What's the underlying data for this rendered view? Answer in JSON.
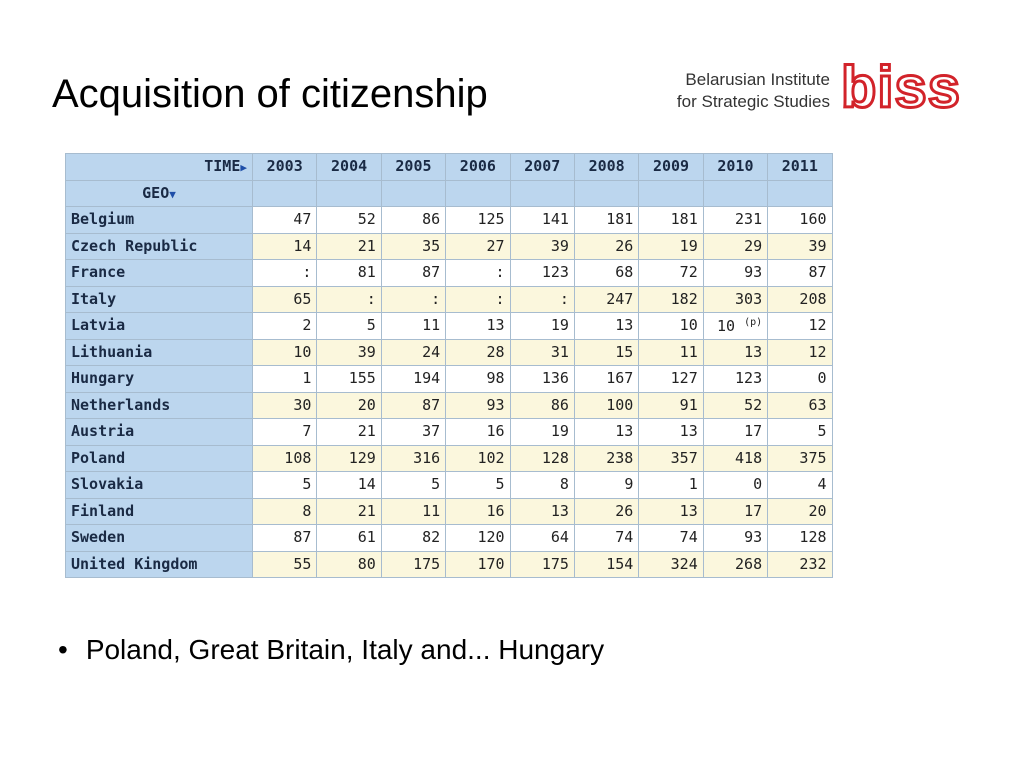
{
  "slide": {
    "title": "Acquisition of citizenship",
    "bullets": [
      "Poland, Great Britain, Italy and... Hungary"
    ]
  },
  "logo": {
    "line1": "Belarusian Institute",
    "line2": "for Strategic Studies",
    "mark": "biss",
    "color": "#d2232a"
  },
  "table": {
    "time_label": "TIME",
    "geo_label": "GEO",
    "years": [
      "2003",
      "2004",
      "2005",
      "2006",
      "2007",
      "2008",
      "2009",
      "2010",
      "2011"
    ],
    "rows": [
      {
        "geo": "Belgium",
        "values": [
          "47",
          "52",
          "86",
          "125",
          "141",
          "181",
          "181",
          "231",
          "160"
        ]
      },
      {
        "geo": "Czech Republic",
        "values": [
          "14",
          "21",
          "35",
          "27",
          "39",
          "26",
          "19",
          "29",
          "39"
        ]
      },
      {
        "geo": "France",
        "values": [
          ":",
          "81",
          "87",
          ":",
          "123",
          "68",
          "72",
          "93",
          "87"
        ]
      },
      {
        "geo": "Italy",
        "values": [
          "65",
          ":",
          ":",
          ":",
          ":",
          "247",
          "182",
          "303",
          "208"
        ]
      },
      {
        "geo": "Latvia",
        "values": [
          "2",
          "5",
          "11",
          "13",
          "19",
          "13",
          "10",
          "10",
          "12"
        ]
      },
      {
        "geo": "Lithuania",
        "values": [
          "10",
          "39",
          "24",
          "28",
          "31",
          "15",
          "11",
          "13",
          "12"
        ]
      },
      {
        "geo": "Hungary",
        "values": [
          "1",
          "155",
          "194",
          "98",
          "136",
          "167",
          "127",
          "123",
          "0"
        ]
      },
      {
        "geo": "Netherlands",
        "values": [
          "30",
          "20",
          "87",
          "93",
          "86",
          "100",
          "91",
          "52",
          "63"
        ]
      },
      {
        "geo": "Austria",
        "values": [
          "7",
          "21",
          "37",
          "16",
          "19",
          "13",
          "13",
          "17",
          "5"
        ]
      },
      {
        "geo": "Poland",
        "values": [
          "108",
          "129",
          "316",
          "102",
          "128",
          "238",
          "357",
          "418",
          "375"
        ]
      },
      {
        "geo": "Slovakia",
        "values": [
          "5",
          "14",
          "5",
          "5",
          "8",
          "9",
          "1",
          "0",
          "4"
        ]
      },
      {
        "geo": "Finland",
        "values": [
          "8",
          "21",
          "11",
          "16",
          "13",
          "26",
          "13",
          "17",
          "20"
        ]
      },
      {
        "geo": "Sweden",
        "values": [
          "87",
          "61",
          "82",
          "120",
          "64",
          "74",
          "74",
          "93",
          "128"
        ]
      },
      {
        "geo": "United Kingdom",
        "values": [
          "55",
          "80",
          "175",
          "170",
          "175",
          "154",
          "324",
          "268",
          "232"
        ]
      }
    ],
    "flags": {
      "Latvia-2010": "(p)"
    }
  }
}
